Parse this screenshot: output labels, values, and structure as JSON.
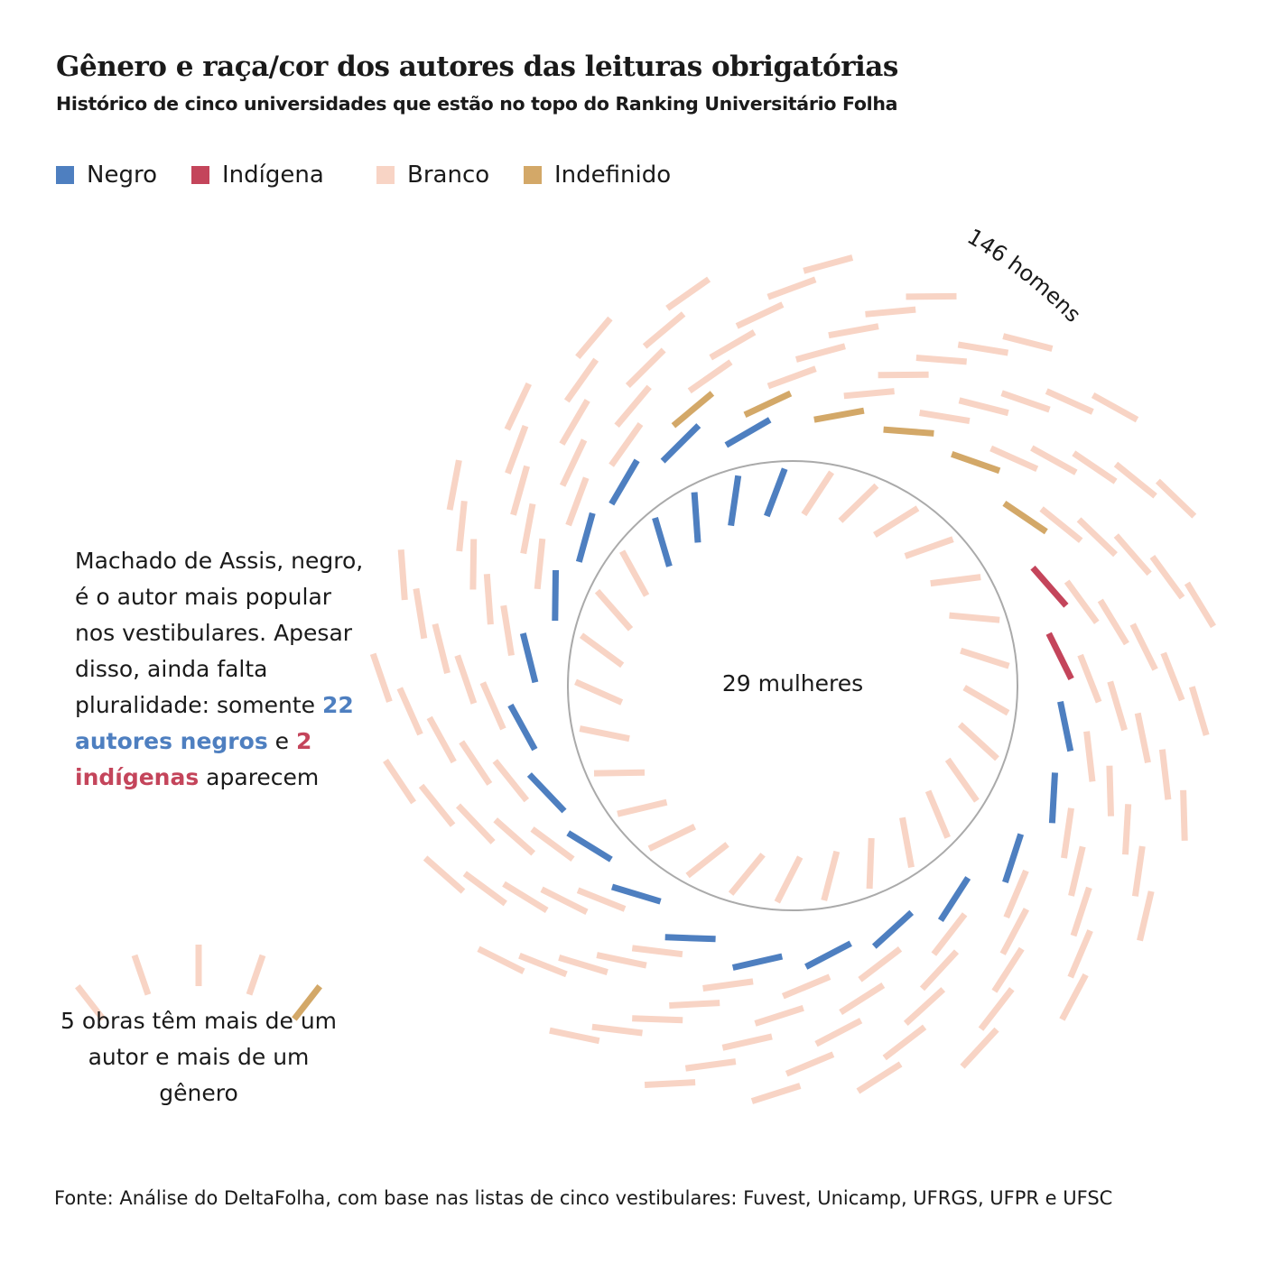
{
  "title": "Gênero e raça/cor dos autores das leituras obrigatórias",
  "subtitle": "Histórico de cinco universidades que estão no topo do Ranking Universitário Folha",
  "legend": [
    {
      "key": "negro",
      "label": "Negro",
      "color": "#4e7fc0"
    },
    {
      "key": "indigena",
      "label": "Indígena",
      "color": "#c4455b"
    },
    {
      "key": "branco",
      "label": "Branco",
      "color": "#f8d4c5"
    },
    {
      "key": "indefinido",
      "label": "Indefinido",
      "color": "#d3a868"
    }
  ],
  "chart_data": {
    "type": "radial-unit",
    "groups": [
      {
        "label": "29 mulheres",
        "count": 29,
        "counts": {
          "negro": 4,
          "indigena": 0,
          "indefinido": 0,
          "branco": 25
        }
      },
      {
        "label": "146 homens",
        "count": 146,
        "counts": {
          "negro": 18,
          "indigena": 2,
          "indefinido": 6,
          "branco": 120
        }
      },
      {
        "label": "",
        "count": 5,
        "counts": {
          "negro": 0,
          "indigena": 0,
          "indefinido": 1,
          "branco": 4
        }
      }
    ]
  },
  "annotation": {
    "text_1": "Machado de Assis, negro, é o autor mais popular nos vestibulares. Apesar disso, ainda falta pluralidade: somente ",
    "negros": "22 autores negros",
    "text_2": " e ",
    "indigenas": "2 indígenas",
    "text_3": " aparecem"
  },
  "multi_note": "5 obras têm mais de um autor e mais de um gênero",
  "source": "Fonte: Análise do DeltaFolha, com base nas listas de cinco vestibulares: Fuvest, Unicamp, UFRGS, UFPR e UFSC"
}
